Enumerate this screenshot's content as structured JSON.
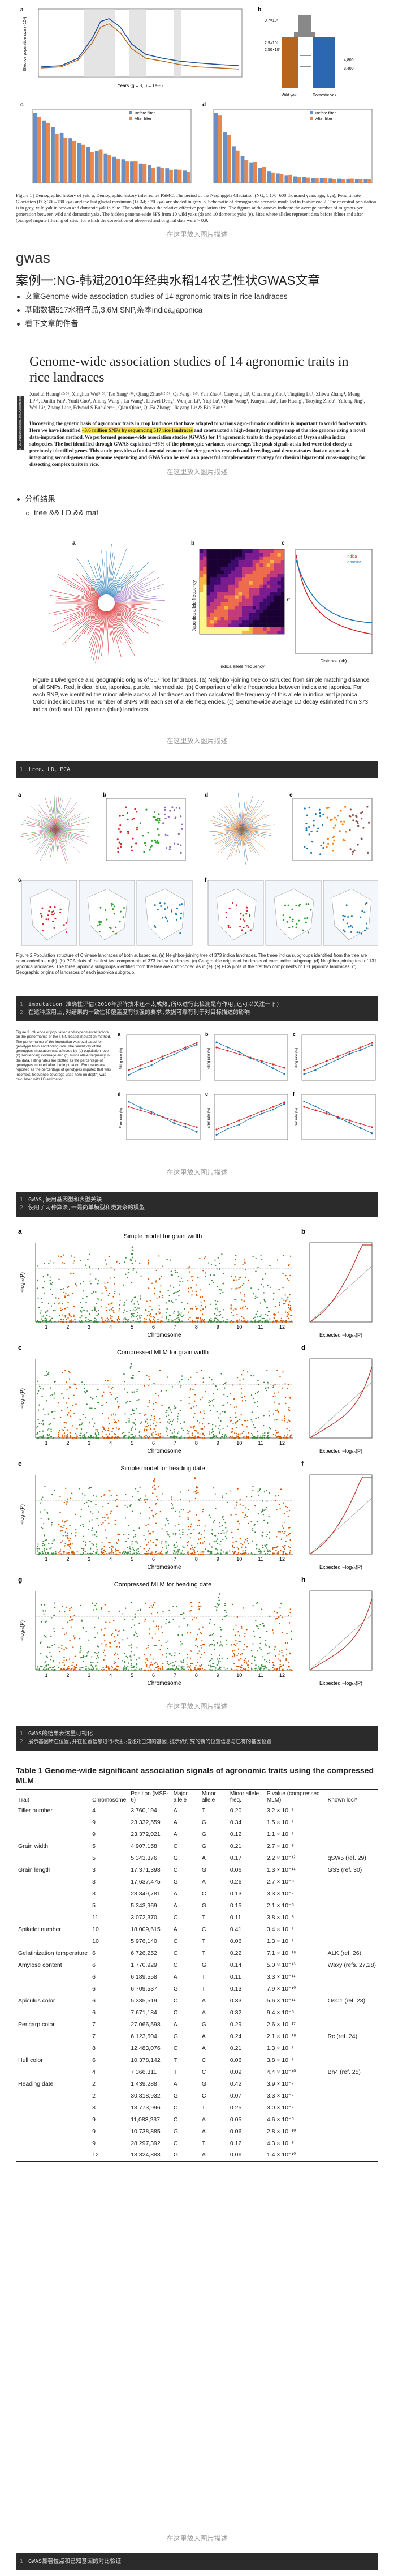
{
  "figure1": {
    "caption": "Figure 1 | Demographic history of yak. a, Demographic history inferred by PSMC. The period of the Naqinggela Glaciation (NG; 1,170–600 thousand years ago, kya), Penultimate Glaciation (PG; 300–130 kya) and the last glacial maximum (LGM; ~20 kya) are shaded in grey. b, Schematic of demographic scenario modelled in fastsimcoal2. The ancestral population is in grey, wild yak in brown and domestic yak in blue. The width shows the relative effective population size. The figures at the arrows indicate the average number of migrants per generation between wild and domestic yaks. The hidden genome-wide SFS from 10 wild yaks (d) and 10 domestic yaks (e). Sites where alleles represent data before (blue) and after (orange) impute filtering of sites, for which the correlation of observed and original data were > 0.9.",
    "panel_a": "a",
    "panel_b": "b",
    "panel_c": "c",
    "panel_d": "d",
    "axis_a_x": "Years (g = 8, μ = 1e-8)",
    "axis_a_y": "Effective population size (×10⁴)",
    "legend_before": "Before filter",
    "legend_after": "After filter",
    "axis_c_y": "Proportion of SNPs",
    "b_labels": [
      "0.7×10⁶",
      "4,800",
      "3,400",
      "2.9×10⁵",
      "2.50×10⁵",
      "7.4",
      "1.0",
      "Wild yak",
      "Domestic yak"
    ]
  },
  "hint1": "在这里放入图片描述",
  "section_title": "gwas",
  "h1": "案例一:NG-韩斌2010年经典水稻14农艺性状GWAS文章",
  "bullets1": [
    "文章Genome-wide association studies of 14 agronomic traits in rice landraces",
    "基础数据517水稻样品,3.6M SNP,亲本indica,japonica",
    "看下文章的件者"
  ],
  "paper": {
    "title": "Genome-wide association studies of 14 agronomic traits in rice landraces",
    "authors": "Xuehui Huang¹·²·⁵⁶, Xinghua Wei³·⁵⁶, Tao Sang⁴·⁵⁶, Qiang Zhao¹·²·⁵⁶, Qi Feng¹·²·⁵, Yan Zhao¹, Canyang Li¹, Chuanrang Zhu¹, Tingting Lu¹, Zhiwu Zhang⁴, Meng Li¹·², Danlin Fan¹, Yunli Guo¹, Ahong Wang¹, Lu Wang¹, Liuwei Deng¹, Wenjun Li¹, Yiqi Lu¹, Qijun Weng¹, Kunyan Liu¹, Tao Huang¹, Taoying Zhou¹, Yufeng Jing¹, Wei Li⁵, Zhang Lin⁵, Edward S Buckler⁶·⁷, Qian Qian³, Qi-Fa Zhang⁶, Jiayang Li⁸ & Bin Han¹·²",
    "abstract_before": "Uncovering the genetic basis of agronomic traits in crop landraces that have adapted to various agro-climatic conditions is important to world food security. Here we have identified ",
    "abstract_highlight": "~3.6 million SNPs by sequencing 517 rice landraces",
    "abstract_after": " and constructed a high-density haplotype map of the rice genome using a novel data-imputation method. We performed genome-wide association studies (GWAS) for 14 agronomic traits in the population of Oryza sativa indica subspecies. The loci identified through GWAS explained ~36% of the phenotypic variance, on average. The peak signals at six loci were tied closely to previously identified genes. This study provides a fundamental resource for rice genetics research and breeding, and demonstrates that an approach integrating second-generation genome sequencing and GWAS can be used as a powerful complementary strategy for classical biparental cross-mapping for dissecting complex traits in rice.",
    "side_label": "© 2010 Nature America, Inc. All rights reserved."
  },
  "hint2": "在这里放入图片描述",
  "bullets2": [
    "分析结果",
    "tree && LD && maf"
  ],
  "figure2": {
    "caption": "Figure 1 Divergence and geographic origins of 517 rice landraces. (a) Neighbor-joining tree constructed from simple matching distance of all SNPs. Red, indica; blue, japonica, purple, intermediate. (b) Comparison of allele frequencies between indica and japonica. For each SNP, we identified the minor allele across all landraces and then calculated the frequency of this allele in indica and japonica. Color index indicates the number of SNPs with each set of allele frequencies. (c) Genome-wide average LD decay estimated from 373 indica (red) and 131 japonica (blue) landraces.",
    "panel_a": "a",
    "panel_b": "b",
    "panel_c": "c",
    "b_xlabel": "Indica allele frequency",
    "b_ylabel": "Japonica allele frequency",
    "c_xlabel": "Distance (kb)",
    "c_ylabel": "r²",
    "c_legend": [
      "indica",
      "japonica"
    ]
  },
  "hint3": "在这里放入图片描述",
  "code1": [
    "tree、LD、PCA"
  ],
  "figure3": {
    "caption": "Figure 2 Population structure of Chinese landraces of both subspecies. (a) Neighbor-joining tree of 373 indica landraces. The three indica subgroups identified from the tree are color-coded as in (b). (b) PCA plots of the first two components of 373 indica landraces. (c) Geographic origins of landraces of each indica subgroup. (d) Neighbor-joining tree of 131 japonica landraces. The three japonica subgroups identified from the tree are color-coded as in (e). (e) PCA plots of the first two components of 131 japonica landraces. (f) Geographic origins of landraces of each japonica subgroup.",
    "panels": [
      "a",
      "b",
      "c",
      "d",
      "e",
      "f"
    ]
  },
  "code2": [
    "imputation 准确性评估(2010年那阵技术还不太成熟,所以进行此检测是有作用,还可以关注一下)",
    "  在这种应用上,对结果的一致性和覆盖度有很强的要求,数据可靠有利于对目标描述的影响"
  ],
  "figure4": {
    "caption": "Figure 3 Influence of population and experimental factors on the performance of the k-NN-based imputation method. The performance of the imputation was evaluated for genotype fill-in and finding rate. The sensitivity of the genotypes imputation was affected by (a) population level, (b) sequencing coverage and (c) minor allele frequency in the data. Filling rates are plotted as the percentage of genotypes imputed after the imputation. Error rates are reported as the percentage of genotypes imputed that was incorrect. Sequence coverage used here (in depth) was calculated with LD estimation...",
    "panels": [
      "a",
      "b",
      "c",
      "d",
      "e",
      "f"
    ],
    "axis_fill": "Filling rate (%)",
    "axis_err": "Error rate (%)",
    "legend": [
      "Before imputation",
      "After imputation"
    ]
  },
  "hint4": "在这里放入图片描述",
  "code3": [
    "GWAS,使用基因型和表型关联",
    "  使用了两种算法,一是简单模型和更复杂的模型"
  ],
  "manhattan": {
    "panels": [
      {
        "letter": "a",
        "title": "Simple model for grain width",
        "qq_letter": "b"
      },
      {
        "letter": "c",
        "title": "Compressed MLM for grain width",
        "qq_letter": "d"
      },
      {
        "letter": "e",
        "title": "Simple model for heading date",
        "qq_letter": "f"
      },
      {
        "letter": "g",
        "title": "Compressed MLM for heading date",
        "qq_letter": "h"
      }
    ],
    "xlabel": "Chromosome",
    "ylabel": "−log₁₀(P)",
    "qq_xlabel": "Expected −log₁₀(P)",
    "qq_ylabel": "Observed −log₁₀(P)",
    "chromosomes": [
      "1",
      "2",
      "3",
      "4",
      "5",
      "6",
      "7",
      "8",
      "9",
      "10",
      "11",
      "12"
    ]
  },
  "hint5": "在这里放入图片描述",
  "code4": [
    "GWAS的结果表达量可视化",
    "  展示基因所在位置,并在位置信息进行标注,描述处已知的基因,提示做研究的新的位置信息与已有的基因位置"
  ],
  "table": {
    "title": "Table 1  Genome-wide significant association signals of agronomic traits using the compressed MLM",
    "headers": [
      "Trait",
      "Chromosome",
      "Position (MSP-6)",
      "Major allele",
      "Minor allele",
      "Minor allele freq.",
      "P value (compressed MLM)",
      "Known loci*"
    ],
    "rows": [
      [
        "Tiller number",
        "4",
        "3,760,194",
        "A",
        "T",
        "0.20",
        "3.2 × 10⁻⁷",
        ""
      ],
      [
        "",
        "9",
        "23,332,559",
        "A",
        "G",
        "0.34",
        "1.5 × 10⁻⁷",
        ""
      ],
      [
        "",
        "9",
        "23,372,021",
        "A",
        "G",
        "0.12",
        "1.1 × 10⁻⁷",
        ""
      ],
      [
        "Grain width",
        "5",
        "4,907,158",
        "C",
        "G",
        "0.21",
        "2.7 × 10⁻⁸",
        ""
      ],
      [
        "",
        "5",
        "5,343,376",
        "G",
        "A",
        "0.17",
        "2.2 × 10⁻¹²",
        "qSW5 (ref. 29)"
      ],
      [
        "Grain length",
        "3",
        "17,371,398",
        "C",
        "G",
        "0.06",
        "1.3 × 10⁻¹¹",
        "GS3 (ref. 30)"
      ],
      [
        "",
        "3",
        "17,637,475",
        "G",
        "A",
        "0.26",
        "2.7 × 10⁻⁸",
        ""
      ],
      [
        "",
        "3",
        "23,349,781",
        "A",
        "C",
        "0.13",
        "3.3 × 10⁻⁷",
        ""
      ],
      [
        "",
        "5",
        "5,343,969",
        "A",
        "G",
        "0.15",
        "2.1 × 10⁻⁸",
        ""
      ],
      [
        "",
        "11",
        "3,072,370",
        "C",
        "T",
        "0.11",
        "3.8 × 10⁻⁸",
        ""
      ],
      [
        "Spikelet number",
        "10",
        "18,009,615",
        "A",
        "C",
        "0.41",
        "3.4 × 10⁻⁷",
        ""
      ],
      [
        "",
        "10",
        "5,976,140",
        "C",
        "T",
        "0.06",
        "1.3 × 10⁻⁷",
        ""
      ],
      [
        "Gelatinization temperature",
        "6",
        "6,726,252",
        "C",
        "T",
        "0.22",
        "7.1 × 10⁻¹⁵",
        "ALK (ref. 26)"
      ],
      [
        "Amylose content",
        "6",
        "1,770,929",
        "C",
        "G",
        "0.14",
        "5.0 × 10⁻¹³",
        "Waxy (refs. 27,28)"
      ],
      [
        "",
        "6",
        "6,189,558",
        "A",
        "T",
        "0.11",
        "3.3 × 10⁻¹¹",
        ""
      ],
      [
        "",
        "6",
        "6,709,537",
        "G",
        "T",
        "0.13",
        "7.9 × 10⁻¹⁰",
        ""
      ],
      [
        "Apiculus color",
        "6",
        "5,335,519",
        "C",
        "A",
        "0.33",
        "5.6 × 10⁻¹¹",
        "OsC1 (ref. 23)"
      ],
      [
        "",
        "6",
        "7,671,184",
        "C",
        "A",
        "0.32",
        "9.4 × 10⁻⁸",
        ""
      ],
      [
        "Pericarp color",
        "7",
        "27,066,598",
        "A",
        "G",
        "0.29",
        "2.6 × 10⁻¹⁷",
        ""
      ],
      [
        "",
        "7",
        "6,123,504",
        "G",
        "A",
        "0.24",
        "2.1 × 10⁻¹⁹",
        "Rc (ref. 24)"
      ],
      [
        "",
        "8",
        "12,483,076",
        "C",
        "A",
        "0.21",
        "1.3 × 10⁻⁷",
        ""
      ],
      [
        "Hull color",
        "6",
        "10,378,142",
        "T",
        "C",
        "0.06",
        "3.8 × 10⁻⁷",
        ""
      ],
      [
        "",
        "4",
        "7,366,311",
        "T",
        "C",
        "0.09",
        "4.4 × 10⁻¹⁰",
        "Bh4 (ref. 25)"
      ],
      [
        "Heading date",
        "2",
        "1,439,288",
        "A",
        "G",
        "0.42",
        "3.9 × 10⁻⁷",
        ""
      ],
      [
        "",
        "2",
        "30,818,932",
        "G",
        "C",
        "0.07",
        "3.3 × 10⁻⁷",
        ""
      ],
      [
        "",
        "8",
        "18,773,996",
        "C",
        "T",
        "0.25",
        "3.0 × 10⁻⁷",
        ""
      ],
      [
        "",
        "9",
        "11,083,237",
        "C",
        "A",
        "0.05",
        "4.6 × 10⁻⁹",
        ""
      ],
      [
        "",
        "9",
        "10,738,885",
        "G",
        "A",
        "0.06",
        "2.8 × 10⁻¹⁰",
        ""
      ],
      [
        "",
        "9",
        "28,297,392",
        "C",
        "T",
        "0.12",
        "4.3 × 10⁻⁸",
        ""
      ],
      [
        "",
        "12",
        "18,324,888",
        "G",
        "A",
        "0.06",
        "1.4 × 10⁻¹⁰",
        ""
      ]
    ]
  },
  "hint6": "在这里放入图片描述",
  "code5": [
    "GWAS显著位点和已知基因的对比验证"
  ],
  "colors": {
    "code_bg": "#2b2b2b",
    "indica": "#d62728",
    "japonica": "#1f77b4",
    "intermediate": "#9467bd",
    "blue_bar": "#6a8fc4",
    "orange_bar": "#e8874d",
    "manhattan_a": "#3a8d3a",
    "manhattan_b": "#d35400"
  }
}
